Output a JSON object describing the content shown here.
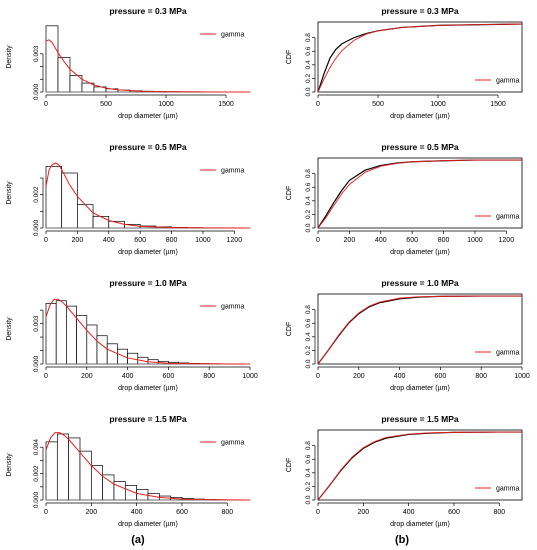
{
  "captions": {
    "left": "(a)",
    "right": "(b)"
  },
  "colors": {
    "gamma_line": "#e8201d",
    "empirical_line": "#000000",
    "hist_edge": "#000000",
    "axis": "#000000"
  },
  "chart_data": [
    {
      "id": "hist-0.3",
      "type": "bar",
      "title": "pressure = 0.3 MPa",
      "xlabel": "drop diameter (µm)",
      "ylabel": "Density",
      "xlim": [
        0,
        1700
      ],
      "ylim": [
        0,
        0.0055
      ],
      "xticks": [
        0,
        500,
        1000,
        1500
      ],
      "yticks": [
        0,
        0.001,
        0.002,
        0.003
      ],
      "ytick_labels": [
        "0.000",
        "",
        "",
        "0.003"
      ],
      "bin_width": 100,
      "values": [
        0.0052,
        0.0027,
        0.0013,
        0.0007,
        0.0004,
        0.00025,
        0.00015,
        0.0001,
        6e-05,
        4e-05,
        3e-05,
        2e-05,
        2e-05,
        1e-05,
        1e-05,
        1e-05,
        5e-06
      ],
      "gamma_curve": {
        "x": [
          0,
          25,
          50,
          75,
          100,
          150,
          200,
          300,
          400,
          500,
          600,
          800,
          1000,
          1200,
          1500,
          1700
        ],
        "y": [
          0.004,
          0.0041,
          0.0039,
          0.0035,
          0.0031,
          0.0024,
          0.0018,
          0.001,
          0.00055,
          0.0003,
          0.00017,
          6e-05,
          2e-05,
          1e-05,
          3e-06,
          1e-06
        ]
      },
      "legend": [
        "gamma"
      ],
      "legend_position": "top-right"
    },
    {
      "id": "hist-0.5",
      "type": "bar",
      "title": "pressure = 0.5 MPa",
      "xlabel": "drop diameter (µm)",
      "ylabel": "Density",
      "xlim": [
        0,
        1300
      ],
      "ylim": [
        0,
        0.0042
      ],
      "xticks": [
        0,
        200,
        400,
        600,
        800,
        1000,
        1200
      ],
      "yticks": [
        0,
        0.001,
        0.002,
        0.003
      ],
      "ytick_labels": [
        "0.000",
        "",
        "0.002",
        ""
      ],
      "bin_width": 100,
      "values": [
        0.0037,
        0.0033,
        0.0014,
        0.0007,
        0.0004,
        0.00022,
        0.00012,
        7e-05,
        4e-05,
        2e-05,
        1e-05,
        1e-05,
        5e-06
      ],
      "gamma_curve": {
        "x": [
          0,
          20,
          40,
          60,
          80,
          100,
          150,
          200,
          300,
          400,
          500,
          600,
          800,
          1000,
          1300
        ],
        "y": [
          0.0025,
          0.0035,
          0.0038,
          0.0039,
          0.0038,
          0.0035,
          0.0026,
          0.0019,
          0.0009,
          0.00045,
          0.00022,
          0.0001,
          3e-05,
          1e-05,
          1e-06
        ]
      },
      "legend": [
        "gamma"
      ],
      "legend_position": "top-right"
    },
    {
      "id": "hist-1.0",
      "type": "bar",
      "title": "pressure = 1.0 MPa",
      "xlabel": "drop diameter (µm)",
      "ylabel": "Density",
      "xlim": [
        0,
        1000
      ],
      "ylim": [
        0,
        0.0052
      ],
      "xticks": [
        0,
        200,
        400,
        600,
        800,
        1000
      ],
      "yticks": [
        0,
        0.001,
        0.002,
        0.003,
        0.004
      ],
      "ytick_labels": [
        "0.000",
        "",
        "",
        "0.003",
        ""
      ],
      "bin_width": 50,
      "values": [
        0.0045,
        0.0047,
        0.0043,
        0.0036,
        0.0029,
        0.0021,
        0.0015,
        0.0011,
        0.0008,
        0.0005,
        0.00032,
        0.0002,
        0.00013,
        8e-05,
        5e-05,
        3e-05,
        2e-05,
        1e-05,
        1e-05,
        5e-06
      ],
      "gamma_curve": {
        "x": [
          0,
          20,
          40,
          60,
          80,
          100,
          150,
          200,
          250,
          300,
          400,
          500,
          600,
          800,
          1000
        ],
        "y": [
          0.0035,
          0.0044,
          0.0048,
          0.0048,
          0.0046,
          0.0043,
          0.0034,
          0.0025,
          0.0017,
          0.0011,
          0.00045,
          0.00017,
          6e-05,
          8e-06,
          1e-06
        ]
      },
      "legend": [
        "gamma"
      ],
      "legend_position": "top-right"
    },
    {
      "id": "hist-1.5",
      "type": "bar",
      "title": "pressure = 1.5 MPa",
      "xlabel": "drop diameter (µm)",
      "ylabel": "Density",
      "xlim": [
        0,
        900
      ],
      "ylim": [
        0,
        0.0053
      ],
      "xticks": [
        0,
        200,
        400,
        600,
        800
      ],
      "yticks": [
        0,
        0.001,
        0.002,
        0.003,
        0.004
      ],
      "ytick_labels": [
        "0.000",
        "",
        "0.002",
        "",
        "0.004"
      ],
      "bin_width": 50,
      "values": [
        0.0044,
        0.005,
        0.0047,
        0.0037,
        0.0026,
        0.0019,
        0.0014,
        0.0011,
        0.0008,
        0.0005,
        0.0003,
        0.0002,
        0.00012,
        7e-05,
        4e-05,
        2e-05,
        1e-05,
        5e-06
      ],
      "gamma_curve": {
        "x": [
          0,
          20,
          40,
          60,
          80,
          100,
          150,
          200,
          250,
          300,
          400,
          500,
          600,
          800,
          900
        ],
        "y": [
          0.0038,
          0.0047,
          0.0051,
          0.0051,
          0.0049,
          0.0046,
          0.0036,
          0.0026,
          0.0018,
          0.0012,
          0.0005,
          0.0002,
          7e-05,
          1e-05,
          3e-06
        ]
      },
      "legend": [
        "gamma"
      ],
      "legend_position": "top-right"
    },
    {
      "id": "cdf-0.3",
      "type": "line",
      "title": "pressure = 0.3 MPa",
      "xlabel": "drop diameter (µm)",
      "ylabel": "CDF",
      "xlim": [
        0,
        1700
      ],
      "ylim": [
        0,
        1.03
      ],
      "xticks": [
        0,
        500,
        1000,
        1500
      ],
      "yticks": [
        0,
        0.2,
        0.4,
        0.6,
        0.8
      ],
      "ytick_labels": [
        "0.0",
        "0.2",
        "0.4",
        "0.6",
        "0.8"
      ],
      "series": [
        {
          "name": "gamma",
          "x": [
            0,
            50,
            100,
            150,
            200,
            300,
            400,
            500,
            700,
            1000,
            1300,
            1700
          ],
          "y": [
            0,
            0.19,
            0.36,
            0.5,
            0.61,
            0.76,
            0.85,
            0.9,
            0.95,
            0.98,
            0.99,
            1.0
          ]
        },
        {
          "x": [
            0,
            50,
            100,
            150,
            200,
            300,
            400,
            500,
            700,
            1000,
            1300,
            1700
          ],
          "y": [
            0,
            0.27,
            0.5,
            0.63,
            0.71,
            0.8,
            0.86,
            0.9,
            0.95,
            0.98,
            0.99,
            1.0
          ]
        }
      ],
      "legend": [
        "gamma"
      ],
      "legend_position": "bottom-right"
    },
    {
      "id": "cdf-0.5",
      "type": "line",
      "title": "pressure = 0.5 MPa",
      "xlabel": "drop diameter (µm)",
      "ylabel": "CDF",
      "xlim": [
        0,
        1300
      ],
      "ylim": [
        0,
        1.03
      ],
      "xticks": [
        0,
        200,
        400,
        600,
        800,
        1000,
        1200
      ],
      "yticks": [
        0,
        0.2,
        0.4,
        0.6,
        0.8
      ],
      "ytick_labels": [
        "0.0",
        "0.2",
        "0.4",
        "0.6",
        "0.8"
      ],
      "series": [
        {
          "name": "gamma",
          "x": [
            0,
            50,
            100,
            150,
            200,
            300,
            400,
            500,
            600,
            800,
            1000,
            1300
          ],
          "y": [
            0,
            0.15,
            0.33,
            0.5,
            0.64,
            0.82,
            0.91,
            0.95,
            0.975,
            0.99,
            1.0,
            1.0
          ]
        },
        {
          "x": [
            0,
            50,
            100,
            150,
            200,
            300,
            400,
            500,
            600,
            800,
            1000,
            1300
          ],
          "y": [
            0,
            0.18,
            0.37,
            0.55,
            0.7,
            0.85,
            0.92,
            0.955,
            0.975,
            0.99,
            1.0,
            1.0
          ]
        }
      ],
      "legend": [
        "gamma"
      ],
      "legend_position": "bottom-right"
    },
    {
      "id": "cdf-1.0",
      "type": "line",
      "title": "pressure = 1.0 MPa",
      "xlabel": "drop diameter (µm)",
      "ylabel": "CDF",
      "xlim": [
        0,
        1000
      ],
      "ylim": [
        0,
        1.03
      ],
      "xticks": [
        0,
        200,
        400,
        600,
        800,
        1000
      ],
      "yticks": [
        0,
        0.2,
        0.4,
        0.6,
        0.8
      ],
      "ytick_labels": [
        "0.0",
        "0.2",
        "0.4",
        "0.6",
        "0.8"
      ],
      "series": [
        {
          "name": "gamma",
          "x": [
            0,
            50,
            100,
            150,
            200,
            250,
            300,
            400,
            500,
            600,
            800,
            1000
          ],
          "y": [
            0,
            0.2,
            0.42,
            0.61,
            0.75,
            0.85,
            0.91,
            0.97,
            0.99,
            0.995,
            1.0,
            1.0
          ]
        },
        {
          "x": [
            0,
            50,
            100,
            150,
            200,
            250,
            300,
            400,
            500,
            600,
            800,
            1000
          ],
          "y": [
            0,
            0.2,
            0.41,
            0.6,
            0.74,
            0.84,
            0.9,
            0.96,
            0.985,
            0.995,
            1.0,
            1.0
          ]
        }
      ],
      "legend": [
        "gamma"
      ],
      "legend_position": "bottom-right"
    },
    {
      "id": "cdf-1.5",
      "type": "line",
      "title": "pressure = 1.5 MPa",
      "xlabel": "drop diameter (µm)",
      "ylabel": "CDF",
      "xlim": [
        0,
        900
      ],
      "ylim": [
        0,
        1.03
      ],
      "xticks": [
        0,
        200,
        400,
        600,
        800
      ],
      "yticks": [
        0,
        0.2,
        0.4,
        0.6,
        0.8
      ],
      "ytick_labels": [
        "0.0",
        "0.2",
        "0.4",
        "0.6",
        "0.8"
      ],
      "series": [
        {
          "name": "gamma",
          "x": [
            0,
            50,
            100,
            150,
            200,
            250,
            300,
            400,
            500,
            600,
            800,
            900
          ],
          "y": [
            0,
            0.21,
            0.44,
            0.63,
            0.77,
            0.86,
            0.92,
            0.97,
            0.99,
            0.995,
            1.0,
            1.0
          ]
        },
        {
          "x": [
            0,
            50,
            100,
            150,
            200,
            250,
            300,
            400,
            500,
            600,
            800,
            900
          ],
          "y": [
            0,
            0.21,
            0.43,
            0.62,
            0.76,
            0.85,
            0.91,
            0.965,
            0.985,
            0.995,
            1.0,
            1.0
          ]
        }
      ],
      "legend": [
        "gamma"
      ],
      "legend_position": "bottom-right"
    }
  ]
}
